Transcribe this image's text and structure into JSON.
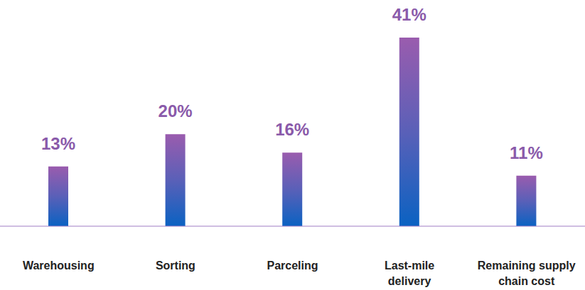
{
  "chart_data": {
    "type": "bar",
    "categories": [
      "Warehousing",
      "Sorting",
      "Parceling",
      "Last-mile delivery",
      "Remaining supply chain cost"
    ],
    "values": [
      13,
      20,
      16,
      41,
      11
    ],
    "value_labels": [
      "13%",
      "20%",
      "16%",
      "41%",
      "11%"
    ],
    "data_labels": true,
    "tick_labels": "x",
    "grid": false
  }
}
